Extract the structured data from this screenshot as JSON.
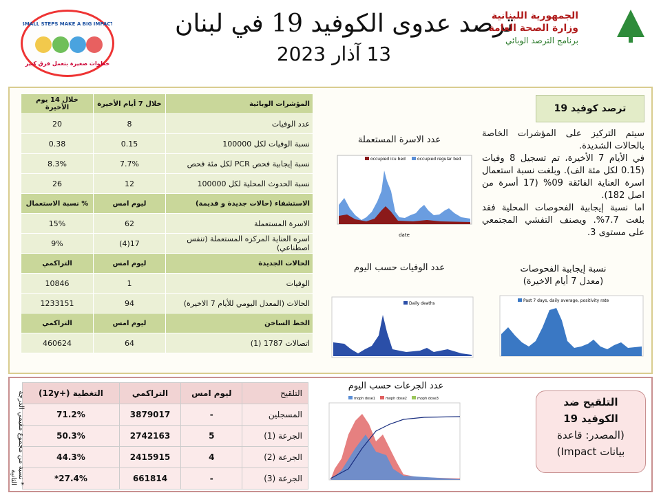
{
  "header": {
    "title": "ترصد عدوى الكوفيد 19 في لبنان",
    "date": "13 آذار 2023",
    "ministry": [
      "الجمهورية اللبنانية",
      "وزارة الصحة العامة",
      "برنامج الترصد الوبائي"
    ],
    "logo": {
      "slogan_en": "SMALL STEPS MAKE A BIG IMPACT",
      "slogan_ar": "خطوات صغيرة بتعمل فرق كبير"
    }
  },
  "indicators_table": {
    "rows": [
      [
        "المؤشرات الوبائية",
        "خلال 7 أيام الأخيرة",
        "خلال 14 يوم الأخيرة"
      ],
      [
        "عدد الوفيات",
        "8",
        "20"
      ],
      [
        "نسبة الوفيات لكل 100000",
        "0.15",
        "0.38"
      ],
      [
        "نسبة إيجابية فحص PCR لكل مئة فحص",
        "7.7%",
        "8.3%"
      ],
      [
        "نسبة الحدوث المحلية لكل 100000",
        "12",
        "26"
      ],
      [
        "الاستشفاء (حالات جديدة و قديمة)",
        "ليوم امس",
        "% نسبة الاستعمال"
      ],
      [
        "الاسرة المستعملة",
        "62",
        "15%"
      ],
      [
        "اسره العناية المركزه المستعملة (تنفس اصطناعي)",
        "17(4)",
        "9%"
      ],
      [
        "الحالات الجديدة",
        "ليوم امس",
        "التراكمي"
      ],
      [
        "الوفيات",
        "1",
        "10846"
      ],
      [
        "الحالات (المعدل اليومي للأيام 7 الاخيرة)",
        "94",
        "1233151"
      ],
      [
        "الخط الساخن",
        "ليوم امس",
        "التراكمي"
      ],
      [
        "اتصالات 1787 (1)",
        "64",
        "460624"
      ]
    ],
    "header_rows": [
      0,
      5,
      8,
      11
    ]
  },
  "summary": {
    "title": "ترصد كوفيد 19",
    "paragraphs": [
      "سيتم التركيز على المؤشرات الخاصة بالحالات الشديدة.",
      "في الأيام 7 الأخيرة، تم تسجيل 8 وفيات (0.15 لكل مئة الف). وبلغت نسبة استعمال اسرة العناية الفائقة 09% (17 أسرة من اصل 182).",
      "اما نسبة إيجابية الفحوصات المحلية فقد بلغت 7.7%. ويصنف التفشي المجتمعي على مستوى 3."
    ]
  },
  "charts": {
    "beds": {
      "title": "عدد الاسرة المستعملة",
      "legend": [
        "occupied icu bed",
        "occupied regular bed"
      ],
      "x_label": "date"
    },
    "deaths": {
      "title": "عدد الوفيات حسب اليوم",
      "legend": [
        "Daily deaths"
      ]
    },
    "positivity": {
      "title": "نسبة إيجابية الفحوصات",
      "subtitle": "(معدل 7 أيام الاخيرة)",
      "legend": [
        "Past 7 days, daily average, positivity rate"
      ]
    },
    "doses": {
      "title": "عدد الجرعات حسب اليوم",
      "legend": [
        "moph dose1",
        "moph dose2",
        "moph dose3"
      ]
    }
  },
  "vaccination_table": {
    "rows": [
      [
        "التلقيح",
        "ليوم امس",
        "التراكمي",
        "التغطية (+12y)"
      ],
      [
        "المسجلين",
        "-",
        "3879017",
        "71.2%"
      ],
      [
        "الجرعة (1)",
        "5",
        "2742163",
        "50.3%"
      ],
      [
        "الجرعة (2)",
        "4",
        "2415915",
        "44.3%"
      ],
      [
        "الجرعة (3)",
        "-",
        "661814",
        "27.4%*"
      ]
    ],
    "footnote": "* نسبة من مجموع مقيمي الدرجة الثانية"
  },
  "vaccination_box": {
    "lines": [
      "التلقيح ضد",
      "الكوفيد 19",
      "(المصدر: قاعدة",
      "بيانات Impact)"
    ]
  }
}
